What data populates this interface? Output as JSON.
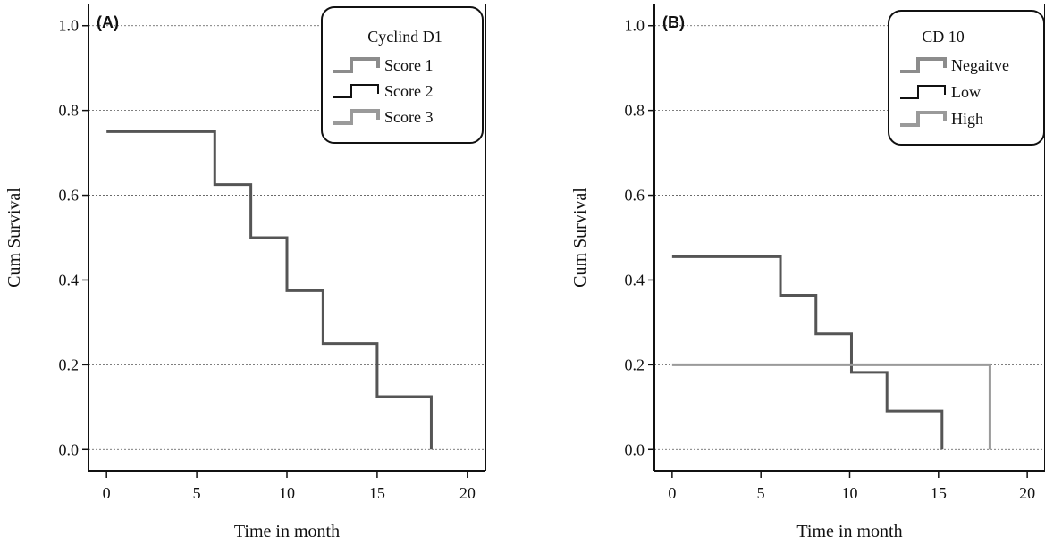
{
  "chart_data": [
    {
      "type": "line",
      "panel_label": "(A)",
      "xlabel": "Time in month",
      "ylabel": "Cum Survival",
      "xlim": [
        -1,
        21
      ],
      "ylim": [
        -0.05,
        1.05
      ],
      "xticks": [
        0,
        5,
        10,
        15,
        20
      ],
      "yticks": [
        0.0,
        0.2,
        0.4,
        0.6,
        0.8,
        1.0
      ],
      "xtick_labels": [
        "0",
        "5",
        "10",
        "15",
        "20"
      ],
      "ytick_labels": [
        "0.0",
        "0.2",
        "0.4",
        "0.6",
        "0.8",
        "1.0"
      ],
      "grid": "horizontal dashed",
      "legend_position": "top-right",
      "legend_title": "Cyclind D1",
      "legend": [
        {
          "label": "Score 1",
          "color": "#8c8c8c"
        },
        {
          "label": "Score 2",
          "color": "#111111"
        },
        {
          "label": "Score 3",
          "color": "#9a9a9a"
        }
      ],
      "series": [
        {
          "color": "#555555",
          "x": [
            0,
            6,
            8,
            10,
            12,
            15,
            18
          ],
          "y": [
            0.75,
            0.625,
            0.5,
            0.375,
            0.25,
            0.125,
            0.0
          ]
        }
      ]
    },
    {
      "type": "line",
      "panel_label": "(B)",
      "xlabel": "Time in month",
      "ylabel": "Cum Survival",
      "xlim": [
        -1,
        21
      ],
      "ylim": [
        -0.05,
        1.05
      ],
      "xticks": [
        0,
        5,
        10,
        15,
        20
      ],
      "yticks": [
        0.0,
        0.2,
        0.4,
        0.6,
        0.8,
        1.0
      ],
      "xtick_labels": [
        "0",
        "5",
        "10",
        "15",
        "20"
      ],
      "ytick_labels": [
        "0.0",
        "0.2",
        "0.4",
        "0.6",
        "0.8",
        "1.0"
      ],
      "grid": "horizontal dashed",
      "legend_position": "top-right",
      "legend_title": "CD 10",
      "legend": [
        {
          "label": "Negaitve",
          "color": "#8c8c8c"
        },
        {
          "label": "Low",
          "color": "#111111"
        },
        {
          "label": "High",
          "color": "#9a9a9a"
        }
      ],
      "series": [
        {
          "color": "#555555",
          "x": [
            0,
            6.1,
            8.1,
            10.1,
            12.1,
            15.2
          ],
          "y": [
            0.455,
            0.364,
            0.273,
            0.182,
            0.091,
            0.0
          ]
        },
        {
          "color": "#9a9a9a",
          "x": [
            0,
            17.9
          ],
          "y": [
            0.2,
            0.0
          ]
        }
      ]
    }
  ]
}
